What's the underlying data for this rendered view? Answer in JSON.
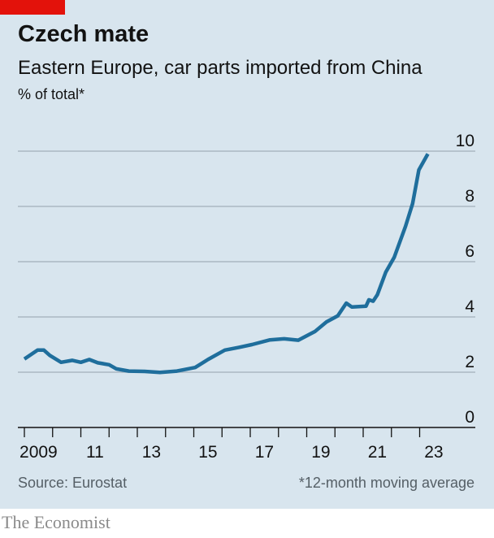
{
  "header": {
    "title": "Czech mate",
    "subtitle": "Eastern Europe, car parts imported from China",
    "unit": "% of total*"
  },
  "footer": {
    "source": "Source: Eurostat",
    "note": "*12-month moving average",
    "brand": "The Economist"
  },
  "colors": {
    "line": "#1f6e9c",
    "accent": "#e3120b",
    "background": "#d8e5ee"
  },
  "chart_data": {
    "type": "line",
    "title": "Czech mate",
    "subtitle": "Eastern Europe, car parts imported from China",
    "ylabel": "% of total*",
    "xlabel": "",
    "ylim": [
      0,
      10
    ],
    "xlim": [
      2009,
      2024.6
    ],
    "yticks": [
      0,
      2,
      4,
      6,
      8,
      10
    ],
    "xtick_labels": [
      "2009",
      "11",
      "13",
      "15",
      "17",
      "19",
      "21",
      "23"
    ],
    "xtick_label_years": [
      2009,
      2011,
      2013,
      2015,
      2017,
      2019,
      2021,
      2023
    ],
    "grid": true,
    "series": [
      {
        "name": "Car parts imported from China, % of total",
        "x": [
          2009.0,
          2009.47,
          2009.69,
          2009.9,
          2010.3,
          2010.7,
          2011.0,
          2011.3,
          2011.6,
          2012.0,
          2012.26,
          2012.7,
          2013.26,
          2013.8,
          2014.4,
          2015.05,
          2015.5,
          2016.1,
          2016.6,
          2017.06,
          2017.7,
          2018.2,
          2018.7,
          2019.3,
          2019.7,
          2020.1,
          2020.4,
          2020.6,
          2021.1,
          2021.2,
          2021.35,
          2021.5,
          2021.8,
          2022.1,
          2022.5,
          2022.75,
          2022.97,
          2023.29
        ],
        "values": [
          2.48,
          2.8,
          2.8,
          2.61,
          2.36,
          2.43,
          2.36,
          2.46,
          2.34,
          2.27,
          2.12,
          2.04,
          2.03,
          1.99,
          2.04,
          2.17,
          2.46,
          2.8,
          2.9,
          3.0,
          3.17,
          3.21,
          3.16,
          3.48,
          3.82,
          4.04,
          4.5,
          4.36,
          4.39,
          4.62,
          4.57,
          4.8,
          5.62,
          6.16,
          7.28,
          8.1,
          9.32,
          9.9
        ]
      }
    ]
  }
}
